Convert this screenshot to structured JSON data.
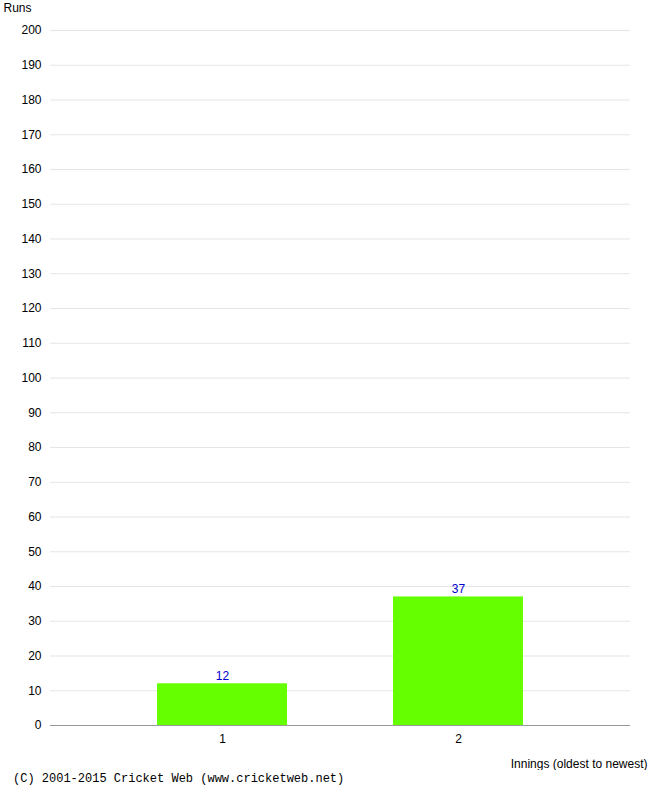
{
  "chart_data": {
    "type": "bar",
    "categories": [
      "1",
      "2"
    ],
    "values": [
      12,
      37
    ],
    "color": "#66ff00",
    "xlabel": "Innings (oldest to newest)",
    "ylabel": "Runs",
    "ylim": [
      0,
      200
    ],
    "yticks": [
      0,
      10,
      20,
      30,
      40,
      50,
      60,
      70,
      80,
      90,
      100,
      110,
      120,
      130,
      140,
      150,
      160,
      170,
      180,
      190,
      200
    ],
    "grid": true,
    "data_labels": true,
    "annotations": [
      "(C) 2001-2015 Cricket Web (www.cricketweb.net)"
    ]
  }
}
